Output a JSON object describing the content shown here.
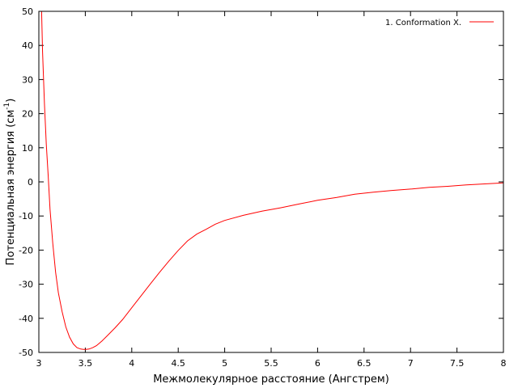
{
  "chart_data": {
    "type": "line",
    "xlabel": "Межмолекулярное расстояние (Ангстрем)",
    "ylabel": "Потенциальная энергия (см",
    "ylabel_sup": "-1",
    "ylabel_end": ")",
    "xlim": [
      3,
      8
    ],
    "ylim": [
      -50,
      50
    ],
    "x_ticks": [
      3,
      3.5,
      4,
      4.5,
      5,
      5.5,
      6,
      6.5,
      7,
      7.5,
      8
    ],
    "y_ticks": [
      -50,
      -40,
      -30,
      -20,
      -10,
      0,
      10,
      20,
      30,
      40,
      50
    ],
    "x_tick_labels": [
      "3",
      "3.5",
      "4",
      "4.5",
      "5",
      "5.5",
      "6",
      "6.5",
      "7",
      "7.5",
      "8"
    ],
    "y_tick_labels": [
      "-50",
      "-40",
      "-30",
      "-20",
      "-10",
      "0",
      "10",
      "20",
      "30",
      "40",
      "50"
    ],
    "grid": false,
    "legend_position": "top-right",
    "series": [
      {
        "name": "1. Conformation X.",
        "color": "#ff0000",
        "x": [
          3.03,
          3.04,
          3.06,
          3.08,
          3.1,
          3.12,
          3.15,
          3.18,
          3.21,
          3.25,
          3.29,
          3.33,
          3.37,
          3.41,
          3.45,
          3.48,
          3.51,
          3.54,
          3.58,
          3.62,
          3.68,
          3.74,
          3.82,
          3.9,
          4.0,
          4.1,
          4.2,
          4.3,
          4.4,
          4.5,
          4.6,
          4.7,
          4.8,
          4.9,
          5.0,
          5.2,
          5.4,
          5.6,
          5.8,
          6.0,
          6.2,
          6.4,
          6.6,
          6.8,
          7.0,
          7.2,
          7.4,
          7.6,
          7.8,
          8.0
        ],
        "y": [
          50,
          38,
          23,
          11,
          2,
          -8,
          -18,
          -26.5,
          -32.5,
          -38,
          -42.5,
          -45.5,
          -47.5,
          -48.6,
          -49,
          -49.1,
          -49.1,
          -49,
          -48.6,
          -48,
          -46.6,
          -45,
          -42.8,
          -40.4,
          -36.9,
          -33.4,
          -29.9,
          -26.5,
          -23.2,
          -20.1,
          -17.3,
          -15.3,
          -13.9,
          -12.4,
          -11.3,
          -9.8,
          -8.6,
          -7.6,
          -6.5,
          -5.4,
          -4.6,
          -3.6,
          -3.0,
          -2.5,
          -2.1,
          -1.6,
          -1.3,
          -0.9,
          -0.6,
          -0.3
        ]
      }
    ]
  }
}
